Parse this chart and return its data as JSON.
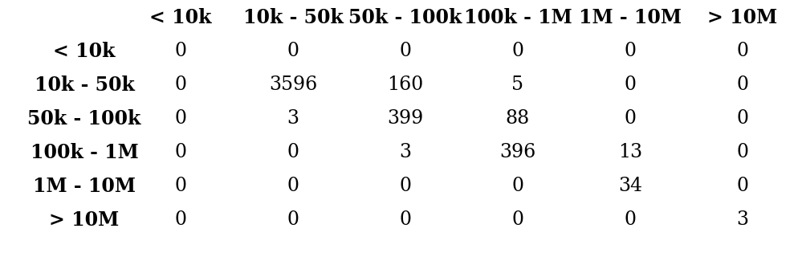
{
  "col_headers": [
    "< 10k",
    "10k - 50k",
    "50k - 100k",
    "100k - 1M",
    "1M - 10M",
    "> 10M"
  ],
  "row_headers": [
    "< 10k",
    "10k - 50k",
    "50k - 100k",
    "100k - 1M",
    "1M - 10M",
    "> 10M"
  ],
  "matrix": [
    [
      0,
      0,
      0,
      0,
      0,
      0
    ],
    [
      0,
      3596,
      160,
      5,
      0,
      0
    ],
    [
      0,
      3,
      399,
      88,
      0,
      0
    ],
    [
      0,
      0,
      3,
      396,
      13,
      0
    ],
    [
      0,
      0,
      0,
      0,
      34,
      0
    ],
    [
      0,
      0,
      0,
      0,
      0,
      3
    ]
  ],
  "background_color": "#ffffff",
  "text_color": "#000000",
  "header_fontsize": 17,
  "cell_fontsize": 17,
  "row_header_fontsize": 17,
  "figsize": [
    9.95,
    3.15
  ],
  "dpi": 100,
  "font_family": "DejaVu Serif"
}
